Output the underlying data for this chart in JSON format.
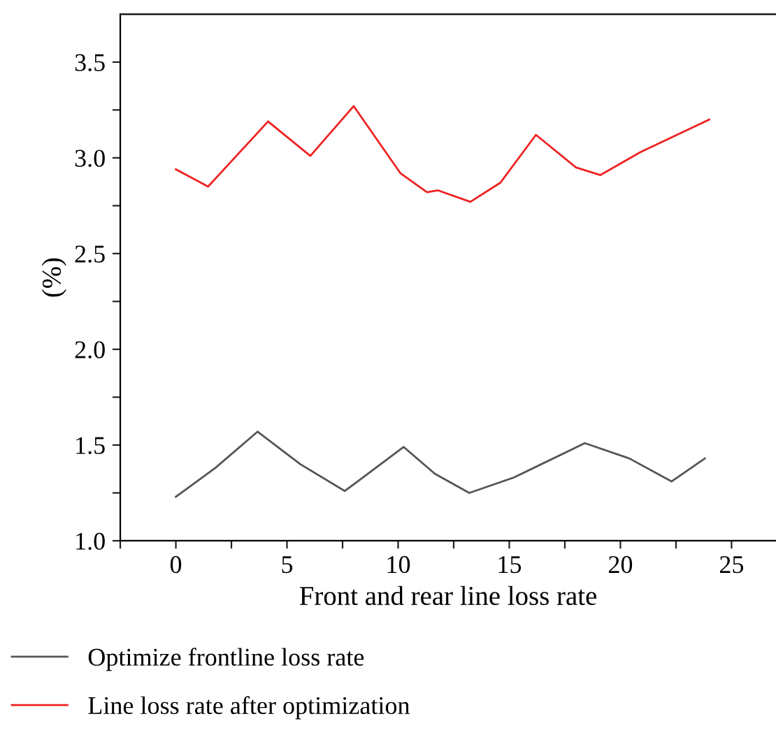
{
  "chart_data": {
    "type": "line",
    "xlabel": "Front and rear line loss rate",
    "ylabel": "(%)",
    "series": [
      {
        "name": "Optimize frontline loss rate",
        "color": "#555555",
        "x": [
          0,
          1.77,
          3.68,
          5.6,
          7.6,
          10.25,
          11.65,
          13.2,
          15.2,
          18.4,
          20.4,
          22.3,
          23.8
        ],
        "values": [
          1.23,
          1.38,
          1.57,
          1.4,
          1.26,
          1.49,
          1.35,
          1.25,
          1.33,
          1.51,
          1.43,
          1.31,
          1.43
        ]
      },
      {
        "name": "Line loss rate after optimization",
        "color": "#ee2222",
        "x": [
          0,
          1.45,
          4.15,
          6.05,
          8.0,
          10.1,
          11.3,
          11.8,
          13.25,
          14.6,
          16.2,
          18.0,
          19.1,
          20.9,
          24.0
        ],
        "values": [
          2.94,
          2.85,
          3.19,
          3.01,
          3.27,
          2.92,
          2.82,
          2.83,
          2.77,
          2.87,
          3.12,
          2.95,
          2.91,
          3.03,
          3.2
        ]
      }
    ],
    "xlim": [
      -2.5,
      27
    ],
    "ylim": [
      1.0,
      3.75
    ],
    "xticks": [
      0,
      {
        "value": 2.5,
        "label": null
      },
      5,
      {
        "value": 7.5,
        "label": null
      },
      10,
      {
        "value": 12.5,
        "label": null
      },
      15,
      {
        "value": 17.5,
        "label": null
      },
      20,
      {
        "value": 22.5,
        "label": null
      },
      25,
      {
        "value": -2.5,
        "label": null
      }
    ],
    "yticks": [
      {
        "value": 1.0,
        "label": "1.0"
      },
      {
        "value": 1.25,
        "label": null
      },
      1.5,
      {
        "value": 1.75,
        "label": null
      },
      {
        "value": 2.0,
        "label": "2.0"
      },
      {
        "value": 2.25,
        "label": null
      },
      2.5,
      {
        "value": 2.75,
        "label": null
      },
      {
        "value": 3.0,
        "label": "3.0"
      },
      {
        "value": 3.25,
        "label": null
      },
      3.5
    ],
    "grid": false,
    "legend": "bottom",
    "marker": "none",
    "line_style": "solid"
  }
}
